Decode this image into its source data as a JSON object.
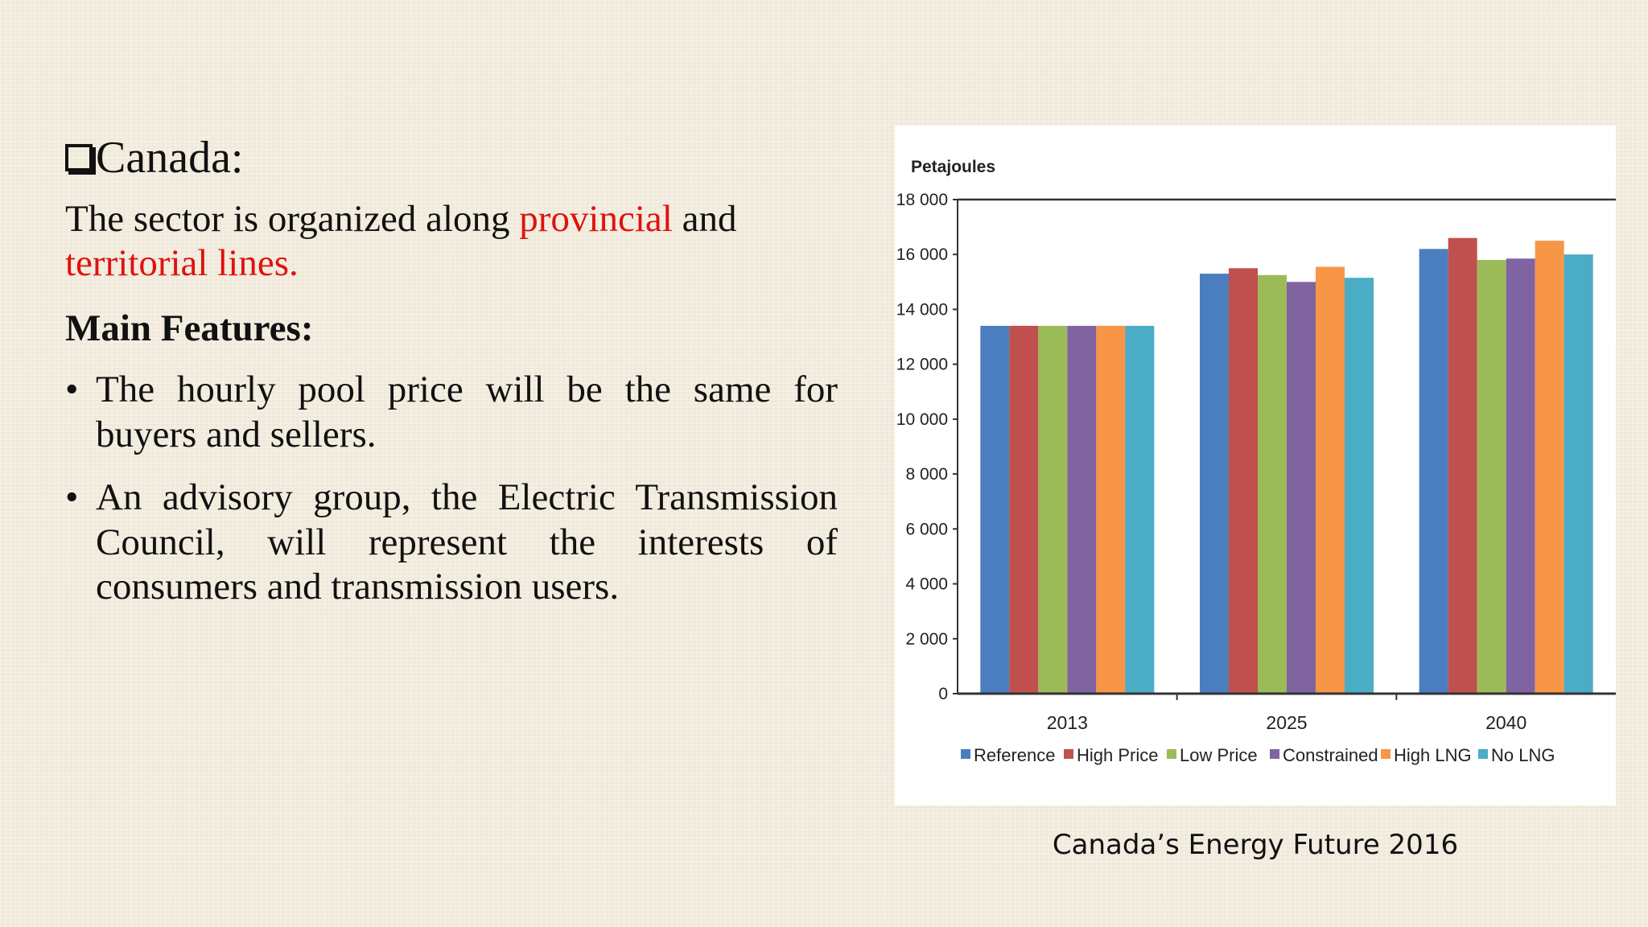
{
  "slide": {
    "heading": "Canada:",
    "intro": {
      "part1": "The sector is organized along ",
      "highlight1": "provincial",
      "part2": " and ",
      "highlight2": "territorial lines."
    },
    "features_title": "Main Features:",
    "bullets": [
      "The hourly pool price will be the same for buyers and sellers.",
      "An advisory group, the Electric Transmission Council, will represent the interests of consumers and transmission users."
    ],
    "bullet_symbol": "•",
    "source": "Canada’s Energy Future 2016",
    "highlight_color": "#e0120e"
  },
  "chart_data": {
    "type": "bar",
    "ylabel": "Petajoules",
    "categories": [
      "2013",
      "2025",
      "2040"
    ],
    "ylim": [
      0,
      18000
    ],
    "yticks": [
      0,
      2000,
      4000,
      6000,
      8000,
      10000,
      12000,
      14000,
      16000,
      18000
    ],
    "ytick_labels": [
      "0",
      "2 000",
      "4 000",
      "6 000",
      "8 000",
      "10 000",
      "12 000",
      "14 000",
      "16 000",
      "18 000"
    ],
    "series": [
      {
        "name": "Reference",
        "color": "#4a7ebf",
        "values": [
          13400,
          15300,
          16200
        ]
      },
      {
        "name": "High Price",
        "color": "#c0504d",
        "values": [
          13400,
          15500,
          16600
        ]
      },
      {
        "name": "Low Price",
        "color": "#9bbb59",
        "values": [
          13400,
          15250,
          15800
        ]
      },
      {
        "name": "Constrained",
        "color": "#8064a2",
        "values": [
          13400,
          15000,
          15850
        ]
      },
      {
        "name": "High LNG",
        "color": "#f79646",
        "values": [
          13400,
          15550,
          16500
        ]
      },
      {
        "name": "No LNG",
        "color": "#4bacc6",
        "values": [
          13400,
          15150,
          16000
        ]
      }
    ],
    "grid": false,
    "legend_position": "bottom"
  }
}
